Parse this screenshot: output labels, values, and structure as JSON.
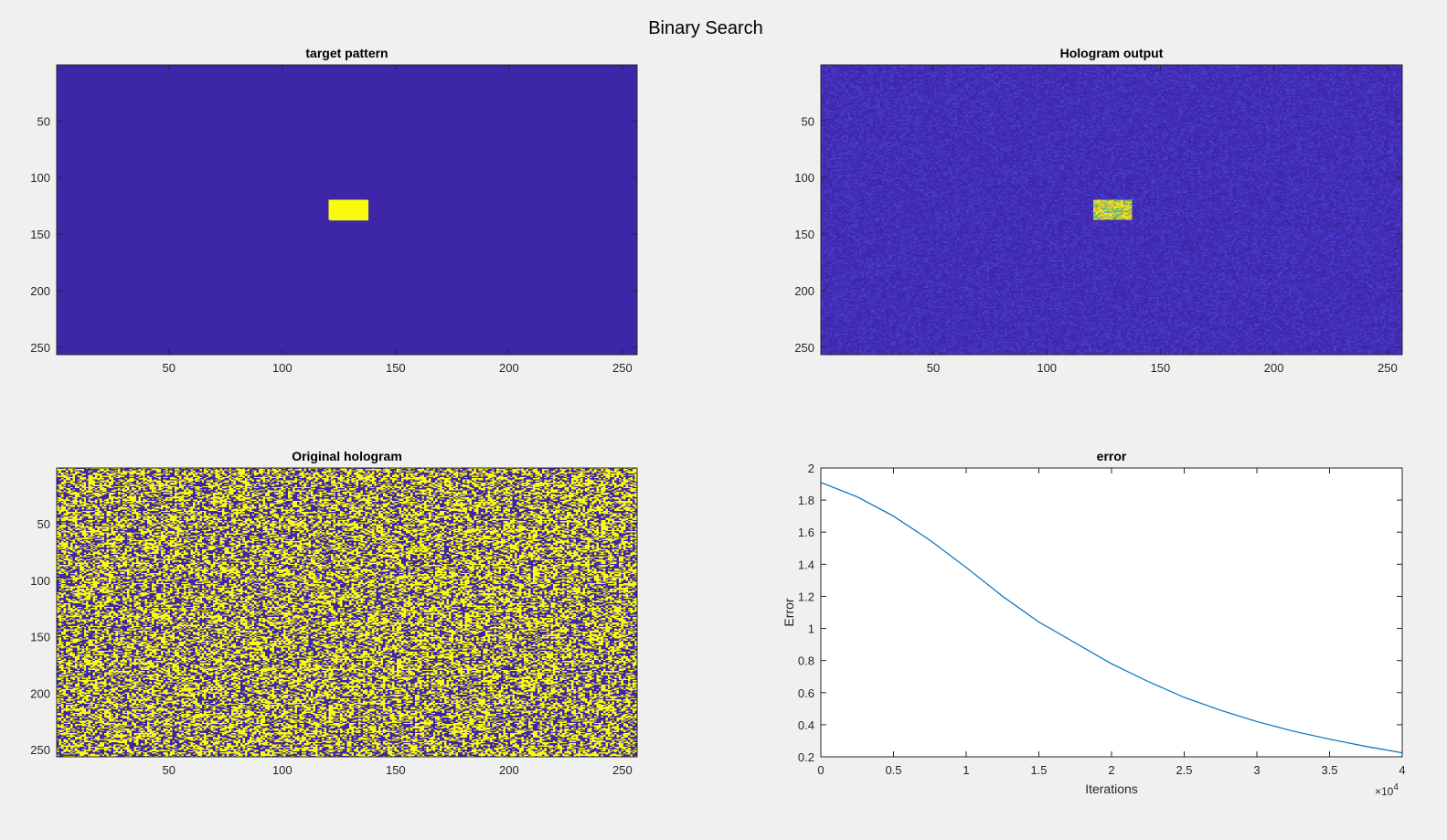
{
  "figure_title": "Binary Search",
  "colors": {
    "background": "#f0f0f0",
    "dark": "#3e26a8",
    "bright": "#f9fb0e",
    "noise_bright": "#4a3fd0",
    "line": "#0072bd",
    "axis": "#262626"
  },
  "chart_data": [
    {
      "type": "heatmap",
      "title": "target pattern",
      "xlim": [
        1,
        256
      ],
      "ylim": [
        1,
        256
      ],
      "y_reversed": true,
      "xticks": [
        50,
        100,
        150,
        200,
        250
      ],
      "yticks": [
        50,
        100,
        150,
        200,
        250
      ],
      "background_value": 0,
      "rectangle": {
        "x": [
          121,
          137
        ],
        "y": [
          120,
          137
        ],
        "value": 1
      }
    },
    {
      "type": "heatmap",
      "title": "Hologram output",
      "xlim": [
        1,
        256
      ],
      "ylim": [
        1,
        256
      ],
      "y_reversed": true,
      "xticks": [
        50,
        100,
        150,
        200,
        250
      ],
      "yticks": [
        50,
        100,
        150,
        200,
        250
      ],
      "background": "low-level random noise",
      "rectangle": {
        "x": [
          121,
          137
        ],
        "y": [
          120,
          137
        ],
        "value": "high, mixed with noise"
      }
    },
    {
      "type": "heatmap",
      "title": "Original hologram",
      "xlim": [
        1,
        256
      ],
      "ylim": [
        1,
        256
      ],
      "y_reversed": true,
      "xticks": [
        50,
        100,
        150,
        200,
        250
      ],
      "yticks": [
        50,
        100,
        150,
        200,
        250
      ],
      "background": "random binary 0/1"
    },
    {
      "type": "line",
      "title": "error",
      "xlabel": "Iterations",
      "ylabel": "Error",
      "xlim": [
        0,
        40000
      ],
      "ylim": [
        0.2,
        2
      ],
      "xticks": [
        "0",
        "0.5",
        "1",
        "1.5",
        "2",
        "2.5",
        "3",
        "3.5",
        "4"
      ],
      "x_exponent_base": "×10",
      "x_exponent": "4",
      "yticks": [
        "0.2",
        "0.4",
        "0.6",
        "0.8",
        "1",
        "1.2",
        "1.4",
        "1.6",
        "1.8",
        "2"
      ],
      "grid": false,
      "series": [
        {
          "x": [
            0,
            2500,
            5000,
            7500,
            10000,
            12500,
            15000,
            17500,
            20000,
            22500,
            25000,
            27500,
            30000,
            32500,
            35000,
            37500,
            40000
          ],
          "y": [
            1.91,
            1.82,
            1.7,
            1.55,
            1.38,
            1.2,
            1.04,
            0.91,
            0.78,
            0.67,
            0.57,
            0.49,
            0.42,
            0.36,
            0.31,
            0.265,
            0.225
          ]
        }
      ]
    }
  ]
}
